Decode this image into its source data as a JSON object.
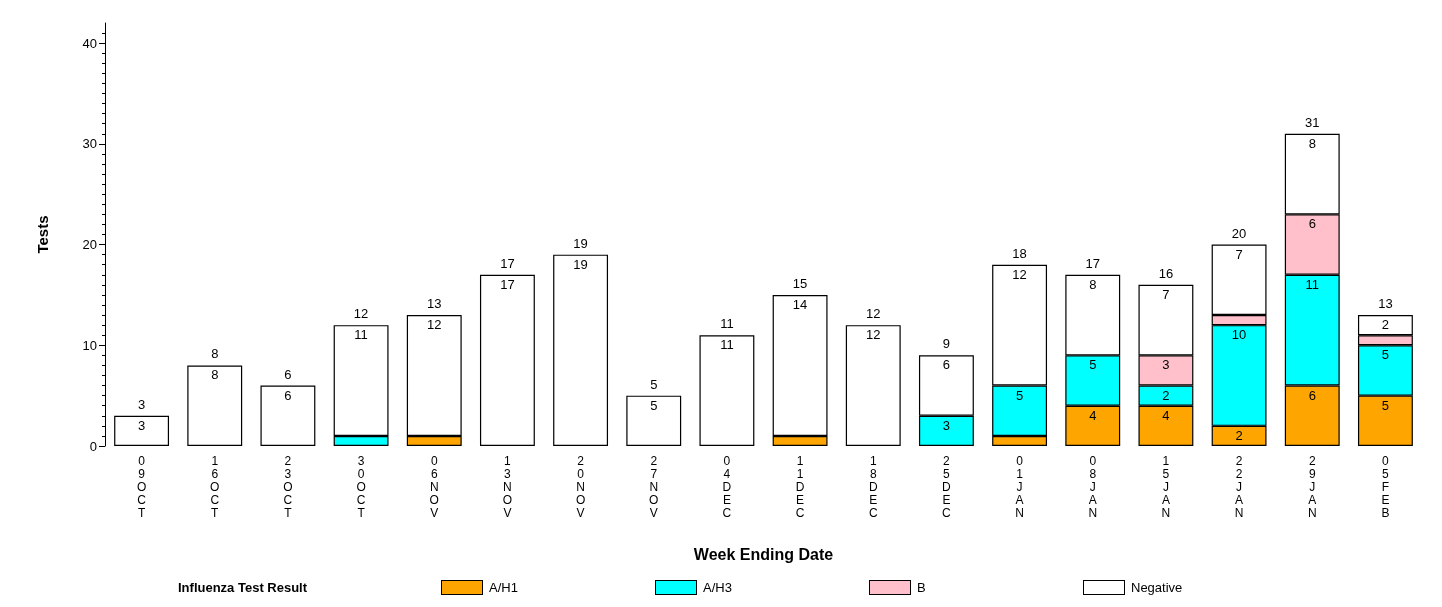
{
  "chart_data": {
    "type": "bar",
    "stacked": true,
    "xlabel": "Week Ending Date",
    "ylabel": "Tests",
    "legend_title": "Influenza Test Result",
    "categories": [
      "09OCT",
      "16OCT",
      "23OCT",
      "30OCT",
      "06NOV",
      "13NOV",
      "20NOV",
      "27NOV",
      "04DEC",
      "11DEC",
      "18DEC",
      "25DEC",
      "01JAN",
      "08JAN",
      "15JAN",
      "22JAN",
      "29JAN",
      "05FEB"
    ],
    "series": [
      {
        "name": "A/H1",
        "color": "#ffa500",
        "values": [
          0,
          0,
          0,
          0,
          1,
          0,
          0,
          0,
          0,
          1,
          0,
          0,
          1,
          4,
          4,
          2,
          6,
          5
        ],
        "value_labels": [
          null,
          null,
          null,
          null,
          null,
          null,
          null,
          null,
          null,
          null,
          null,
          null,
          null,
          "4",
          "4",
          "2",
          "6",
          "5"
        ]
      },
      {
        "name": "A/H3",
        "color": "#00ffff",
        "values": [
          0,
          0,
          0,
          1,
          0,
          0,
          0,
          0,
          0,
          0,
          0,
          3,
          5,
          5,
          2,
          10,
          11,
          5
        ],
        "value_labels": [
          null,
          null,
          null,
          null,
          null,
          null,
          null,
          null,
          null,
          null,
          null,
          "3",
          "5",
          "5",
          "2",
          "10",
          "11",
          "5"
        ]
      },
      {
        "name": "B",
        "color": "#ffc0cb",
        "values": [
          0,
          0,
          0,
          0,
          0,
          0,
          0,
          0,
          0,
          0,
          0,
          0,
          0,
          0,
          3,
          1,
          6,
          1
        ],
        "value_labels": [
          null,
          null,
          null,
          null,
          null,
          null,
          null,
          null,
          null,
          null,
          null,
          null,
          null,
          null,
          "3",
          null,
          "6",
          null
        ]
      },
      {
        "name": "Negative",
        "color": "#ffffff",
        "values": [
          3,
          8,
          6,
          11,
          12,
          17,
          19,
          5,
          11,
          14,
          12,
          6,
          12,
          8,
          7,
          7,
          8,
          2
        ],
        "value_labels": [
          "3",
          "8",
          "6",
          "11",
          "12",
          "17",
          "19",
          "5",
          "11",
          "14",
          "12",
          "6",
          "12",
          "8",
          "7",
          "7",
          "8",
          "2"
        ]
      }
    ],
    "totals": [
      "3",
      "8",
      "6",
      "12",
      "13",
      "17",
      "19",
      "5",
      "11",
      "15",
      "12",
      "9",
      "18",
      "17",
      "16",
      "20",
      "31",
      "13"
    ],
    "ylim": [
      0,
      42
    ],
    "yticks": [
      0,
      10,
      20,
      30,
      40
    ],
    "grid": false,
    "legend": "bottom"
  }
}
